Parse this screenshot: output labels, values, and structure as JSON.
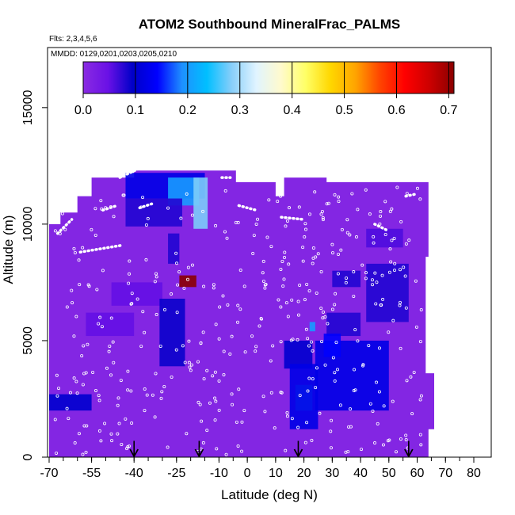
{
  "chart_data": {
    "type": "heatmap",
    "title": "ATOM2 Southbound MineralFrac_PALMS",
    "flights_note": "Flts: 2,3,4,5,6",
    "dates_note": "MMDD: 0129,0201,0203,0205,0210",
    "xlabel": "Latitude (deg N)",
    "ylabel": "Altitude (m)",
    "xlim": [
      -70,
      80
    ],
    "ylim": [
      0,
      17000
    ],
    "x_ticks": [
      -70,
      -55,
      -40,
      -25,
      -10,
      0,
      10,
      20,
      30,
      40,
      50,
      60,
      70,
      80
    ],
    "y_ticks": [
      0,
      5000,
      10000,
      15000
    ],
    "colorbar": {
      "min": 0.0,
      "max": 0.71,
      "ticks": [
        0.0,
        0.1,
        0.2,
        0.3,
        0.4,
        0.5,
        0.6,
        0.7
      ],
      "tick_labels": [
        "0.0",
        "0.1",
        "0.2",
        "0.3",
        "0.4",
        "0.5",
        "0.6",
        "0.7"
      ],
      "colors": [
        "#8a2be2",
        "#6a11e6",
        "#0000c8",
        "#0000ff",
        "#1e90ff",
        "#00bfff",
        "#87cefa",
        "#e0f4ff",
        "#fffacd",
        "#ffff66",
        "#ffd700",
        "#ffa500",
        "#ff4500",
        "#ff0000",
        "#cd0000",
        "#8b0000"
      ]
    },
    "background_value": 0.01,
    "regions": [
      {
        "lat": [
          -43,
          -15
        ],
        "alt": [
          11100,
          12200
        ],
        "value": 0.12
      },
      {
        "lat": [
          -28,
          -17
        ],
        "alt": [
          10800,
          12000
        ],
        "value": 0.2
      },
      {
        "lat": [
          -19,
          -14
        ],
        "alt": [
          9800,
          12000
        ],
        "value": 0.28
      },
      {
        "lat": [
          -43,
          -23
        ],
        "alt": [
          9900,
          11100
        ],
        "value": 0.08
      },
      {
        "lat": [
          -70,
          -55
        ],
        "alt": [
          2000,
          2700
        ],
        "value": 0.1
      },
      {
        "lat": [
          -57,
          -40
        ],
        "alt": [
          5200,
          6200
        ],
        "value": 0.05
      },
      {
        "lat": [
          -48,
          -30
        ],
        "alt": [
          6500,
          7500
        ],
        "value": 0.05
      },
      {
        "lat": [
          -31,
          -22
        ],
        "alt": [
          3900,
          6800
        ],
        "value": 0.09
      },
      {
        "lat": [
          -28,
          -24
        ],
        "alt": [
          8300,
          9600
        ],
        "value": 0.08
      },
      {
        "lat": [
          -24,
          -18
        ],
        "alt": [
          7300,
          7800
        ],
        "value": 0.71
      },
      {
        "lat": [
          13,
          23
        ],
        "alt": [
          3800,
          5000
        ],
        "value": 0.1
      },
      {
        "lat": [
          17,
          23
        ],
        "alt": [
          2000,
          3100
        ],
        "value": 0.25
      },
      {
        "lat": [
          15,
          25
        ],
        "alt": [
          1200,
          4000
        ],
        "value": 0.12
      },
      {
        "lat": [
          24,
          50
        ],
        "alt": [
          2000,
          5000
        ],
        "value": 0.12
      },
      {
        "lat": [
          28,
          40
        ],
        "alt": [
          5200,
          6200
        ],
        "value": 0.08
      },
      {
        "lat": [
          42,
          57
        ],
        "alt": [
          5800,
          8300
        ],
        "value": 0.08
      },
      {
        "lat": [
          30,
          40
        ],
        "alt": [
          7300,
          8000
        ],
        "value": 0.08
      },
      {
        "lat": [
          42,
          55
        ],
        "alt": [
          9000,
          9800
        ],
        "value": 0.06
      },
      {
        "lat": [
          27,
          33
        ],
        "alt": [
          4300,
          5300
        ],
        "value": 0.14
      },
      {
        "lat": [
          22,
          24
        ],
        "alt": [
          5400,
          5800
        ],
        "value": 0.2
      }
    ],
    "data_outline": [
      [
        -70,
        0
      ],
      [
        -70,
        10000
      ],
      [
        -66,
        10000
      ],
      [
        -66,
        10500
      ],
      [
        -60,
        10500
      ],
      [
        -60,
        11200
      ],
      [
        -55,
        11200
      ],
      [
        -55,
        12000
      ],
      [
        -40,
        12000
      ],
      [
        -40,
        12300
      ],
      [
        -4,
        12300
      ],
      [
        -4,
        11800
      ],
      [
        10,
        11800
      ],
      [
        10,
        11200
      ],
      [
        13,
        11200
      ],
      [
        13,
        12000
      ],
      [
        28,
        12000
      ],
      [
        28,
        11800
      ],
      [
        64,
        11800
      ],
      [
        64,
        8600
      ],
      [
        63,
        8600
      ],
      [
        63,
        3600
      ],
      [
        66,
        3600
      ],
      [
        66,
        1200
      ],
      [
        64,
        1200
      ],
      [
        64,
        0
      ]
    ],
    "flight_tracks": [
      {
        "points": [
          [
            -67,
            9600
          ],
          [
            -62,
            10200
          ]
        ]
      },
      {
        "points": [
          [
            -45,
            12000
          ],
          [
            -38,
            12400
          ]
        ]
      },
      {
        "points": [
          [
            -59,
            8800
          ],
          [
            -44,
            9100
          ]
        ]
      },
      {
        "points": [
          [
            -51,
            10600
          ],
          [
            -46,
            10800
          ]
        ]
      },
      {
        "points": [
          [
            -38,
            10700
          ],
          [
            -33,
            10900
          ]
        ]
      },
      {
        "points": [
          [
            -3,
            10800
          ],
          [
            3,
            10600
          ]
        ]
      },
      {
        "points": [
          [
            -9,
            12000
          ],
          [
            -6,
            12000
          ]
        ]
      },
      {
        "points": [
          [
            12,
            10300
          ],
          [
            20,
            10200
          ]
        ]
      },
      {
        "points": [
          [
            45,
            10000
          ],
          [
            50,
            9700
          ]
        ]
      },
      {
        "points": [
          [
            56,
            11200
          ],
          [
            60,
            11300
          ]
        ]
      }
    ],
    "vertical_profile_markers": [
      {
        "lat": -40,
        "alt": [
          0,
          700
        ]
      },
      {
        "lat": -17,
        "alt": [
          0,
          700
        ]
      },
      {
        "lat": 18,
        "alt": [
          0,
          700
        ]
      },
      {
        "lat": 57,
        "alt": [
          0,
          700
        ]
      }
    ]
  }
}
